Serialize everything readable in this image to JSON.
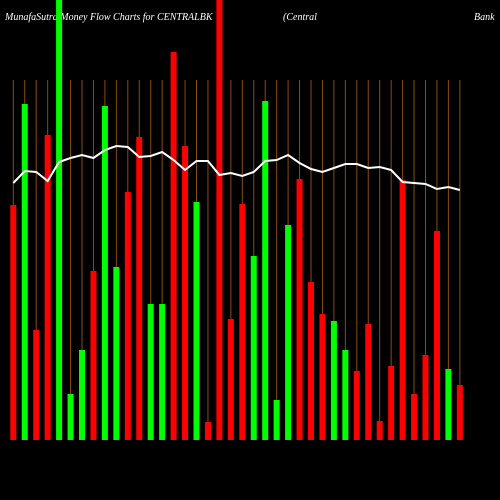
{
  "chart_data": {
    "type": "bar",
    "title": "MunafaSutra  Money Flow  Charts for CENTRALBK",
    "title_right": [
      "(Central",
      "Bank"
    ],
    "categories": [
      null,
      null,
      null,
      null,
      null,
      null,
      null,
      null,
      null,
      null,
      null,
      null,
      null,
      null,
      null,
      null,
      null,
      null,
      null,
      null,
      null,
      null,
      null,
      null,
      null,
      null,
      null,
      null,
      null,
      null,
      null,
      null,
      null,
      null,
      null,
      null,
      null,
      null,
      null,
      null
    ],
    "values": [
      235,
      336,
      110,
      305,
      440,
      46,
      90,
      169,
      334,
      173,
      248,
      303,
      136,
      136,
      388,
      294,
      238,
      18,
      440,
      121,
      236,
      184,
      339,
      40,
      215,
      261,
      158,
      126,
      119,
      90,
      69,
      116,
      19,
      74,
      260,
      46,
      85,
      209,
      71,
      55
    ],
    "colors": [
      "#ff0000",
      "#00ff00",
      "#ff0000",
      "#ff0000",
      "#00ff00",
      "#00ff00",
      "#00ff00",
      "#ff0000",
      "#00ff00",
      "#00ff00",
      "#ff0000",
      "#ff0000",
      "#00ff00",
      "#00ff00",
      "#ff0000",
      "#ff0000",
      "#00ff00",
      "#ff0000",
      "#ff0000",
      "#ff0000",
      "#ff0000",
      "#00ff00",
      "#00ff00",
      "#00ff00",
      "#00ff00",
      "#ff0000",
      "#ff0000",
      "#ff0000",
      "#00ff00",
      "#00ff00",
      "#ff0000",
      "#ff0000",
      "#ff0000",
      "#ff0000",
      "#ff0000",
      "#ff0000",
      "#ff0000",
      "#ff0000",
      "#00ff00",
      "#ff0000"
    ],
    "line": {
      "color": "#ffffff",
      "values": [
        257,
        269,
        268,
        259,
        278,
        282,
        285,
        282,
        290,
        294,
        293,
        283,
        284,
        288,
        280,
        270,
        279,
        279,
        265,
        267,
        264,
        268,
        279,
        280,
        285,
        277,
        271,
        268,
        272,
        276,
        276,
        272,
        273,
        270,
        258,
        257,
        256,
        251,
        253,
        250
      ]
    },
    "grid_color": "#8b4a14"
  }
}
